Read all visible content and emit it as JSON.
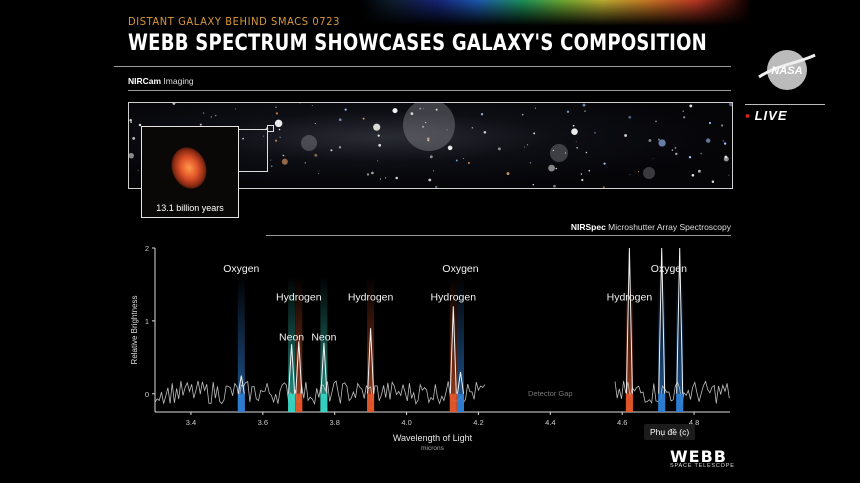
{
  "header": {
    "subtitle": "DISTANT GALAXY BEHIND SMACS 0723",
    "title": "WEBB SPECTRUM SHOWCASES GALAXY'S COMPOSITION"
  },
  "imaging": {
    "label_bold": "NIRCam",
    "label_rest": " Imaging",
    "inset_caption": "13.1 billion years"
  },
  "spectroscopy": {
    "label_bold": "NIRSpec",
    "label_rest": " Microshutter Array Spectroscopy"
  },
  "branding": {
    "nasa": "NASA",
    "live": "LIVE",
    "webb": "WEBB",
    "webb_sub": "SPACE TELESCOPE"
  },
  "captions_button": "Phụ đề (c)",
  "colors": {
    "oxygen": "#2f7fd6",
    "hydrogen": "#e4582a",
    "neon": "#36d6c4",
    "accent": "#d89a3a",
    "live_red": "#e8202a"
  },
  "chart_data": {
    "type": "line",
    "xlabel": "Wavelength of Light",
    "xunit": "microns",
    "ylabel": "Relative Brightness",
    "xlim": [
      3.3,
      4.9
    ],
    "ylim": [
      -0.25,
      2.0
    ],
    "xticks": [
      3.4,
      3.6,
      3.8,
      4.0,
      4.2,
      4.4,
      4.6,
      4.8
    ],
    "yticks": [
      0,
      1,
      2
    ],
    "gap": {
      "from": 4.22,
      "to": 4.58,
      "label": "Detector Gap"
    },
    "lines": [
      {
        "name": "Oxygen",
        "x": 3.54,
        "peak": 0.25,
        "color": "oxygen"
      },
      {
        "name": "Neon",
        "x": 3.68,
        "peak": 0.68,
        "color": "neon"
      },
      {
        "name": "Hydrogen",
        "x": 3.7,
        "peak": 0.72,
        "color": "hydrogen"
      },
      {
        "name": "Neon",
        "x": 3.77,
        "peak": 0.7,
        "color": "neon"
      },
      {
        "name": "Hydrogen",
        "x": 3.9,
        "peak": 0.9,
        "color": "hydrogen"
      },
      {
        "name": "Hydrogen",
        "x": 4.13,
        "peak": 1.2,
        "color": "hydrogen"
      },
      {
        "name": "Oxygen",
        "x": 4.15,
        "peak": 0.3,
        "color": "oxygen"
      },
      {
        "name": "Hydrogen",
        "x": 4.62,
        "peak": 2.0,
        "color": "hydrogen"
      },
      {
        "name": "Oxygen",
        "x": 4.71,
        "peak": 2.0,
        "color": "oxygen"
      },
      {
        "name": "Oxygen",
        "x": 4.76,
        "peak": 2.0,
        "color": "oxygen"
      }
    ],
    "labels": [
      {
        "text": "Oxygen",
        "x": 3.54,
        "y": 1.67
      },
      {
        "text": "Hydrogen",
        "x": 3.7,
        "y": 1.28
      },
      {
        "text": "Hydrogen",
        "x": 3.9,
        "y": 1.28
      },
      {
        "text": "Neon",
        "x": 3.68,
        "y": 0.73
      },
      {
        "text": "Neon",
        "x": 3.77,
        "y": 0.73
      },
      {
        "text": "Oxygen",
        "x": 4.15,
        "y": 1.67
      },
      {
        "text": "Hydrogen",
        "x": 4.13,
        "y": 1.28
      },
      {
        "text": "Hydrogen",
        "x": 4.62,
        "y": 1.28
      },
      {
        "text": "Oxygen",
        "x": 4.73,
        "y": 1.67
      }
    ]
  }
}
